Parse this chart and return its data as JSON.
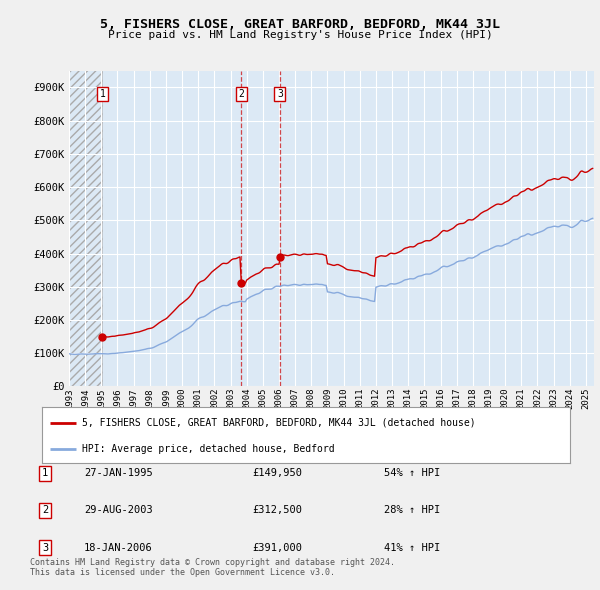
{
  "title": "5, FISHERS CLOSE, GREAT BARFORD, BEDFORD, MK44 3JL",
  "subtitle": "Price paid vs. HM Land Registry's House Price Index (HPI)",
  "ylim": [
    0,
    950000
  ],
  "yticks": [
    0,
    100000,
    200000,
    300000,
    400000,
    500000,
    600000,
    700000,
    800000,
    900000
  ],
  "ytick_labels": [
    "£0",
    "£100K",
    "£200K",
    "£300K",
    "£400K",
    "£500K",
    "£600K",
    "£700K",
    "£800K",
    "£900K"
  ],
  "background_color": "#f0f0f0",
  "plot_bg_color": "#dce9f5",
  "hatch_color": "#bbbbbb",
  "grid_color": "#ffffff",
  "sale_color": "#cc0000",
  "hpi_color": "#88aadd",
  "purchases": [
    {
      "date_num": 1995.07,
      "price": 149950,
      "label": "1"
    },
    {
      "date_num": 2003.66,
      "price": 312500,
      "label": "2"
    },
    {
      "date_num": 2006.05,
      "price": 391000,
      "label": "3"
    }
  ],
  "vline_dates": [
    2003.66,
    2006.05
  ],
  "legend_sale": "5, FISHERS CLOSE, GREAT BARFORD, BEDFORD, MK44 3JL (detached house)",
  "legend_hpi": "HPI: Average price, detached house, Bedford",
  "table_rows": [
    {
      "num": "1",
      "date": "27-JAN-1995",
      "price": "£149,950",
      "change": "54% ↑ HPI"
    },
    {
      "num": "2",
      "date": "29-AUG-2003",
      "price": "£312,500",
      "change": "28% ↑ HPI"
    },
    {
      "num": "3",
      "date": "18-JAN-2006",
      "price": "£391,000",
      "change": "41% ↑ HPI"
    }
  ],
  "footnote": "Contains HM Land Registry data © Crown copyright and database right 2024.\nThis data is licensed under the Open Government Licence v3.0.",
  "xlabel_years": [
    "1993",
    "1994",
    "1995",
    "1996",
    "1997",
    "1998",
    "1999",
    "2000",
    "2001",
    "2002",
    "2003",
    "2004",
    "2005",
    "2006",
    "2007",
    "2008",
    "2009",
    "2010",
    "2011",
    "2012",
    "2013",
    "2014",
    "2015",
    "2016",
    "2017",
    "2018",
    "2019",
    "2020",
    "2021",
    "2022",
    "2023",
    "2024",
    "2025"
  ],
  "xstart": 1993.0,
  "xend": 2025.5
}
